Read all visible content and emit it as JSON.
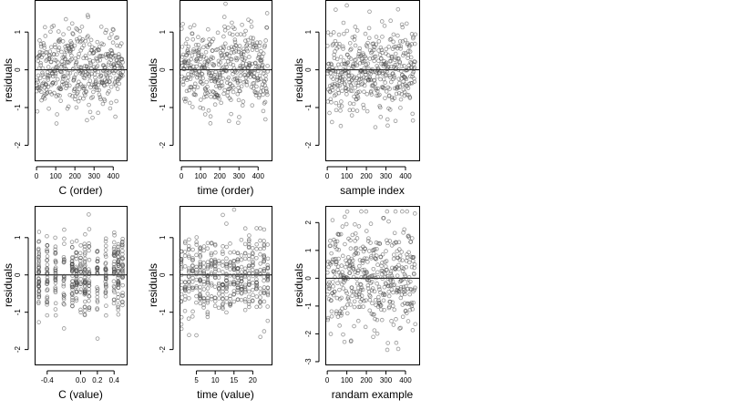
{
  "chart_data": [
    {
      "type": "scatter",
      "xlabel": "C (order)",
      "ylabel": "residuals",
      "xlim": [
        -10,
        470
      ],
      "ylim": [
        -2.4,
        1.85
      ],
      "xticks": [
        0,
        100,
        200,
        300,
        400
      ],
      "yticks": [
        -2,
        -1,
        0,
        1
      ],
      "hline": 0,
      "n_points": 450,
      "x_spec": {
        "kind": "index",
        "start": 1,
        "end": 450
      },
      "y_spec": {
        "distribution": "normal",
        "mean": 0,
        "sd": 0.5,
        "min": -2.2,
        "max": 1.75,
        "seed": 11
      }
    },
    {
      "type": "scatter",
      "xlabel": "time (order)",
      "ylabel": "residuals",
      "xlim": [
        -10,
        470
      ],
      "ylim": [
        -2.4,
        1.85
      ],
      "xticks": [
        0,
        100,
        200,
        300,
        400
      ],
      "yticks": [
        -2,
        -1,
        0,
        1
      ],
      "hline": 0,
      "n_points": 450,
      "x_spec": {
        "kind": "index",
        "start": 1,
        "end": 450
      },
      "y_spec": {
        "distribution": "normal",
        "mean": 0,
        "sd": 0.55,
        "min": -2.2,
        "max": 1.75,
        "seed": 23
      }
    },
    {
      "type": "scatter",
      "xlabel": "sample index",
      "ylabel": "residuals",
      "xlim": [
        -10,
        470
      ],
      "ylim": [
        -2.4,
        1.85
      ],
      "xticks": [
        0,
        100,
        200,
        300,
        400
      ],
      "yticks": [
        -2,
        -1,
        0,
        1
      ],
      "hline": 0,
      "n_points": 450,
      "x_spec": {
        "kind": "index",
        "start": 1,
        "end": 450
      },
      "y_spec": {
        "distribution": "normal",
        "mean": 0,
        "sd": 0.55,
        "min": -2.2,
        "max": 1.75,
        "seed": 37
      }
    },
    {
      "type": "scatter",
      "xlabel": "C (value)",
      "ylabel": "residuals",
      "xlim": [
        -0.55,
        0.55
      ],
      "ylim": [
        -2.4,
        1.85
      ],
      "xticks": [
        -0.4,
        0.0,
        0.2,
        0.4
      ],
      "xtick_labels": [
        "-0.4",
        "0.0",
        "0.2",
        "0.4"
      ],
      "yticks": [
        -2,
        -1,
        0,
        1
      ],
      "hline": 0,
      "n_points": 450,
      "x_spec": {
        "kind": "levels",
        "levels": [
          -0.5,
          -0.4,
          -0.3,
          -0.2,
          -0.1,
          -0.05,
          0.0,
          0.05,
          0.1,
          0.2,
          0.3,
          0.4,
          0.45,
          0.5
        ],
        "jitter": 0.004
      },
      "y_spec": {
        "distribution": "normal",
        "mean": 0,
        "sd": 0.5,
        "min": -2.2,
        "max": 1.75,
        "seed": 53
      }
    },
    {
      "type": "scatter",
      "xlabel": "time (value)",
      "ylabel": "residuals",
      "xlim": [
        0.5,
        25
      ],
      "ylim": [
        -2.4,
        1.85
      ],
      "xticks": [
        5,
        10,
        15,
        20
      ],
      "yticks": [
        -2,
        -1,
        0,
        1
      ],
      "hline": 0,
      "n_points": 450,
      "x_spec": {
        "kind": "levels",
        "levels": [
          1,
          2,
          3,
          4,
          5,
          6,
          7,
          8,
          9,
          10,
          11,
          12,
          13,
          14,
          15,
          16,
          17,
          18,
          19,
          20,
          21,
          22,
          23,
          24
        ],
        "jitter": 0.05
      },
      "y_spec": {
        "distribution": "normal",
        "mean": 0,
        "sd": 0.55,
        "min": -2.2,
        "max": 1.75,
        "seed": 71
      }
    },
    {
      "type": "scatter",
      "xlabel": "randam example",
      "ylabel": "residuals",
      "xlim": [
        -10,
        470
      ],
      "ylim": [
        -3.1,
        2.6
      ],
      "xticks": [
        0,
        100,
        200,
        300,
        400
      ],
      "yticks": [
        -3,
        -2,
        -1,
        0,
        1,
        2
      ],
      "hline": 0,
      "n_points": 450,
      "x_spec": {
        "kind": "index",
        "start": 1,
        "end": 450
      },
      "y_spec": {
        "distribution": "normal",
        "mean": 0,
        "sd": 1.0,
        "min": -2.9,
        "max": 2.4,
        "seed": 97
      }
    }
  ]
}
